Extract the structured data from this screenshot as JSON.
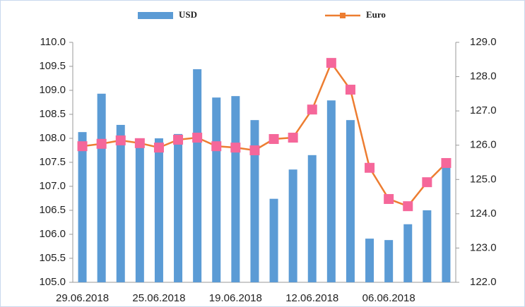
{
  "chart_data": {
    "type": "bar_line",
    "categories": [
      "29.06.2018",
      null,
      null,
      null,
      "25.06.2018",
      null,
      null,
      null,
      "19.06.2018",
      null,
      null,
      null,
      "12.06.2018",
      null,
      null,
      null,
      "06.06.2018",
      null,
      null,
      null
    ],
    "series": [
      {
        "name": "USD",
        "type": "bar",
        "color": "#5b9bd5",
        "values": [
          108.13,
          108.93,
          108.28,
          107.95,
          108.0,
          108.09,
          109.44,
          108.85,
          108.88,
          108.38,
          106.74,
          107.35,
          107.65,
          108.79,
          108.38,
          105.91,
          105.88,
          106.21,
          106.5,
          107.46
        ]
      },
      {
        "name": "Euro",
        "type": "line",
        "axis": "y2",
        "color": "#ed7d31",
        "marker_color": "#f5679a",
        "values": [
          125.97,
          126.04,
          126.14,
          126.06,
          125.93,
          126.16,
          126.22,
          125.97,
          125.93,
          125.85,
          126.18,
          126.22,
          127.04,
          128.4,
          127.62,
          125.34,
          124.43,
          124.22,
          124.92,
          125.48
        ]
      }
    ],
    "ylim": [
      105,
      110
    ],
    "yticks": [
      {
        "value": 105,
        "label": "105.0"
      },
      105.5,
      {
        "value": 106,
        "label": "106.0"
      },
      106.5,
      {
        "value": 107,
        "label": "107.0"
      },
      107.5,
      {
        "value": 108,
        "label": "108.0"
      },
      108.5,
      {
        "value": 109,
        "label": "109.0"
      },
      109.5,
      {
        "value": 110,
        "label": "110.0"
      }
    ],
    "y2lim": [
      122,
      129
    ],
    "y2ticks": [
      {
        "value": 122,
        "label": "122.0"
      },
      {
        "value": 123,
        "label": "123.0"
      },
      {
        "value": 124,
        "label": "124.0"
      },
      {
        "value": 125,
        "label": "125.0"
      },
      {
        "value": 126,
        "label": "126.0"
      },
      {
        "value": 127,
        "label": "127.0"
      },
      {
        "value": 128,
        "label": "128.0"
      },
      {
        "value": 129,
        "label": "129.0"
      }
    ],
    "legend": "top"
  }
}
